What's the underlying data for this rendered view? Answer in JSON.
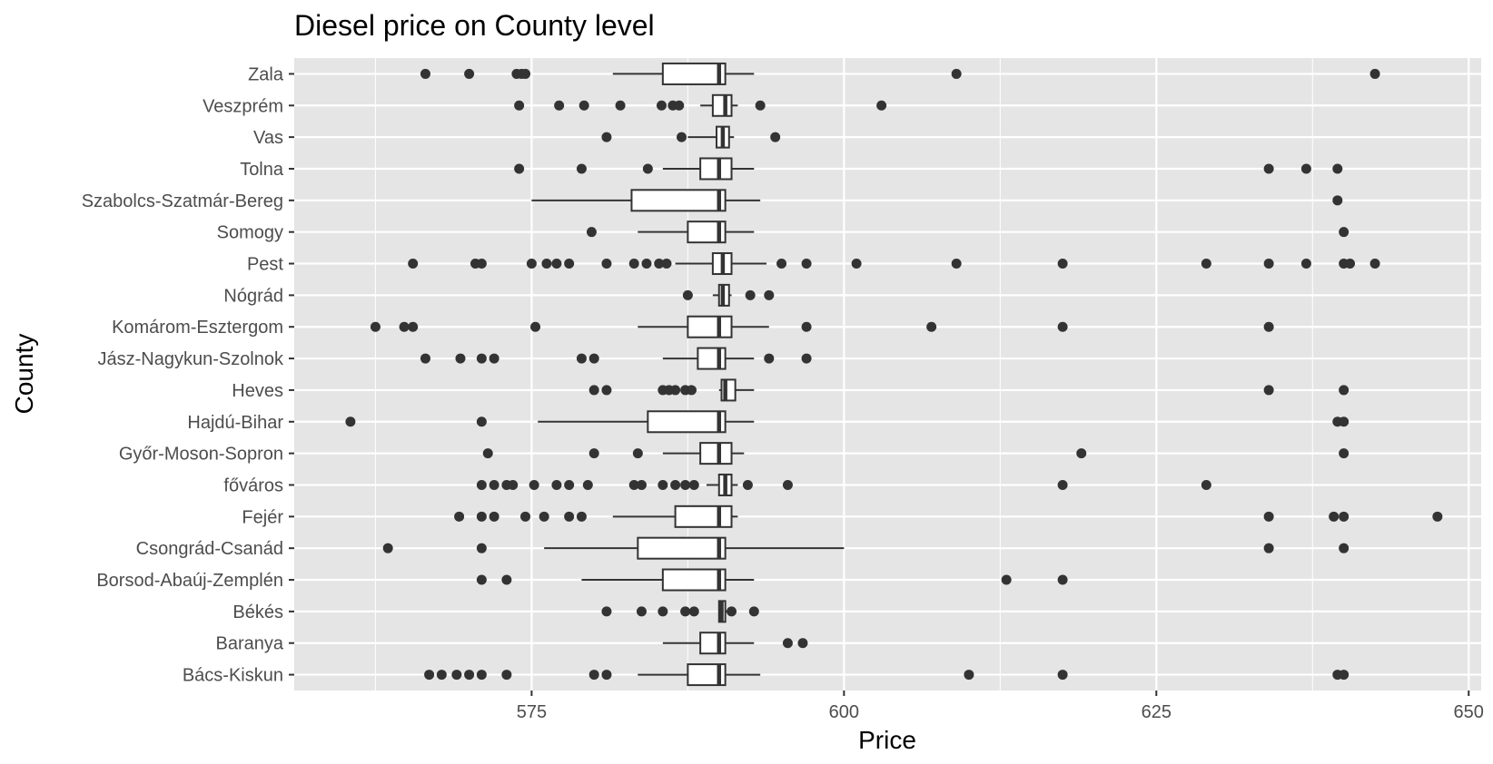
{
  "chart_data": {
    "type": "boxplot",
    "orientation": "horizontal",
    "title": "Diesel price on County level",
    "xlabel": "Price",
    "ylabel": "County",
    "xlim": [
      556,
      651
    ],
    "xticks": [
      575,
      600,
      625,
      650
    ],
    "grid": true,
    "panel_background": "#e5e5e5",
    "grid_color": "#ffffff",
    "box_fill": "#ffffff",
    "line_color": "#333333",
    "point_color": "#333333",
    "categories": [
      "Zala",
      "Veszprém",
      "Vas",
      "Tolna",
      "Szabolcs-Szatmár-Bereg",
      "Somogy",
      "Pest",
      "Nógrád",
      "Komárom-Esztergom",
      "Jász-Nagykun-Szolnok",
      "Heves",
      "Hajdú-Bihar",
      "Győr-Moson-Sopron",
      "főváros",
      "Fejér",
      "Csongrád-Csanád",
      "Borsod-Abaúj-Zemplén",
      "Békés",
      "Baranya",
      "Bács-Kiskun"
    ],
    "boxes": [
      {
        "county": "Zala",
        "whisker_low": 581.5,
        "q1": 585.5,
        "median": 590,
        "q3": 590.5,
        "whisker_high": 592.8,
        "outliers": [
          566.5,
          570,
          573.8,
          574.2,
          574.5,
          609,
          642.5
        ]
      },
      {
        "county": "Veszprém",
        "whisker_low": 588.5,
        "q1": 589.5,
        "median": 590.5,
        "q3": 591,
        "whisker_high": 591.5,
        "outliers": [
          574,
          577.2,
          579.2,
          582.1,
          585.4,
          586.3,
          586.8,
          593.3,
          603
        ]
      },
      {
        "county": "Vas",
        "whisker_low": 587.5,
        "q1": 589.8,
        "median": 590.3,
        "q3": 590.8,
        "whisker_high": 591.2,
        "outliers": [
          581,
          587,
          594.5
        ]
      },
      {
        "county": "Tolna",
        "whisker_low": 585.5,
        "q1": 588.5,
        "median": 590,
        "q3": 591,
        "whisker_high": 592.8,
        "outliers": [
          574,
          579,
          584.3,
          634,
          637,
          639.5
        ]
      },
      {
        "county": "Szabolcs-Szatmár-Bereg",
        "whisker_low": 575,
        "q1": 583,
        "median": 590,
        "q3": 590.5,
        "whisker_high": 593.3,
        "outliers": [
          639.5
        ]
      },
      {
        "county": "Somogy",
        "whisker_low": 583.5,
        "q1": 587.5,
        "median": 590,
        "q3": 590.5,
        "whisker_high": 592.8,
        "outliers": [
          579.8,
          640
        ]
      },
      {
        "county": "Pest",
        "whisker_low": 586.5,
        "q1": 589.5,
        "median": 590.3,
        "q3": 591,
        "whisker_high": 593.8,
        "outliers": [
          565.5,
          570.5,
          571,
          575,
          576.2,
          577,
          578,
          581,
          583.2,
          584.2,
          585.2,
          585.8,
          595,
          597,
          601,
          609,
          617.5,
          629,
          634,
          637,
          640,
          640.5,
          642.5
        ]
      },
      {
        "county": "Nógrád",
        "whisker_low": 589.5,
        "q1": 590,
        "median": 590.3,
        "q3": 590.8,
        "whisker_high": 591,
        "outliers": [
          587.5,
          592.5,
          594
        ]
      },
      {
        "county": "Komárom-Esztergom",
        "whisker_low": 583.5,
        "q1": 587.5,
        "median": 590,
        "q3": 591,
        "whisker_high": 594,
        "outliers": [
          562.5,
          564.8,
          565.5,
          575.3,
          597,
          607,
          617.5,
          634
        ]
      },
      {
        "county": "Jász-Nagykun-Szolnok",
        "whisker_low": 585.5,
        "q1": 588.3,
        "median": 590,
        "q3": 590.5,
        "whisker_high": 592.8,
        "outliers": [
          566.5,
          569.3,
          571,
          572,
          579,
          580,
          594,
          597
        ]
      },
      {
        "county": "Heves",
        "whisker_low": 590,
        "q1": 590.2,
        "median": 590.5,
        "q3": 591.3,
        "whisker_high": 592.8,
        "outliers": [
          580,
          581,
          585.5,
          586,
          586.5,
          587.3,
          587.8,
          634,
          640
        ]
      },
      {
        "county": "Hajdú-Bihar",
        "whisker_low": 575.5,
        "q1": 584.3,
        "median": 590,
        "q3": 590.5,
        "whisker_high": 592.8,
        "outliers": [
          560.5,
          571,
          639.5,
          640
        ]
      },
      {
        "county": "Győr-Moson-Sopron",
        "whisker_low": 585.5,
        "q1": 588.5,
        "median": 590,
        "q3": 591,
        "whisker_high": 592,
        "outliers": [
          571.5,
          580,
          583.5,
          619,
          640
        ]
      },
      {
        "county": "főváros",
        "whisker_low": 589,
        "q1": 590,
        "median": 590.5,
        "q3": 591,
        "whisker_high": 591.5,
        "outliers": [
          571,
          572,
          573,
          573.5,
          575.2,
          577,
          578,
          579.5,
          583.2,
          583.8,
          585.5,
          586.5,
          587.3,
          588,
          592.3,
          595.5,
          617.5,
          629
        ]
      },
      {
        "county": "Fejér",
        "whisker_low": 581.5,
        "q1": 586.5,
        "median": 590,
        "q3": 591,
        "whisker_high": 591.5,
        "outliers": [
          569.2,
          571,
          572,
          574.5,
          576,
          578,
          579,
          634,
          639.2,
          640,
          647.5
        ]
      },
      {
        "county": "Csongrád-Csanád",
        "whisker_low": 576,
        "q1": 583.5,
        "median": 590,
        "q3": 590.5,
        "whisker_high": 600,
        "outliers": [
          563.5,
          571,
          634,
          640
        ]
      },
      {
        "county": "Borsod-Abaúj-Zemplén",
        "whisker_low": 579,
        "q1": 585.5,
        "median": 590,
        "q3": 590.5,
        "whisker_high": 592.8,
        "outliers": [
          571,
          573,
          613,
          617.5
        ]
      },
      {
        "county": "Békés",
        "whisker_low": 590,
        "q1": 590,
        "median": 590.2,
        "q3": 590.5,
        "whisker_high": 591,
        "outliers": [
          581,
          583.8,
          585.5,
          587.3,
          588,
          591,
          592.8
        ]
      },
      {
        "county": "Baranya",
        "whisker_low": 585.5,
        "q1": 588.5,
        "median": 590,
        "q3": 590.5,
        "whisker_high": 592.8,
        "outliers": [
          595.5,
          596.7
        ]
      },
      {
        "county": "Bács-Kiskun",
        "whisker_low": 583.5,
        "q1": 587.5,
        "median": 590,
        "q3": 590.5,
        "whisker_high": 593.3,
        "outliers": [
          566.8,
          567.8,
          569,
          570,
          571,
          573,
          580,
          581,
          610,
          617.5,
          639.5,
          640
        ]
      }
    ]
  }
}
